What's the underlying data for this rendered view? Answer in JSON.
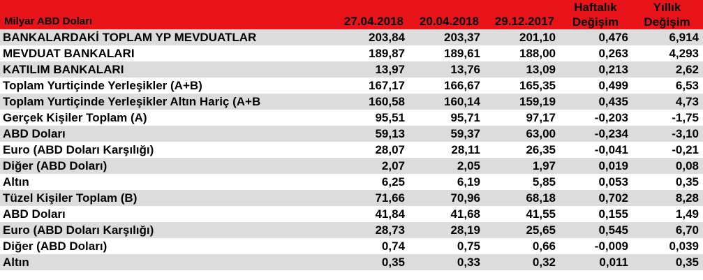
{
  "header": {
    "unit_label": "Milyar ABD Doları",
    "col1": "27.04.2018",
    "col2": "20.04.2018",
    "col3": "29.12.2017",
    "col4_line1": "Haftalık",
    "col4_line2": "Değişim",
    "col5_line1": "Yıllık",
    "col5_line2": "Değişim"
  },
  "rows": [
    {
      "label": "BANKALARDAKİ TOPLAM YP MEVDUATLAR",
      "level": 0,
      "v1": "203,84",
      "v2": "203,37",
      "v3": "201,10",
      "v4": "0,476",
      "v5": "6,914"
    },
    {
      "label": "MEVDUAT BANKALARI",
      "level": 0,
      "v1": "189,87",
      "v2": "189,61",
      "v3": "188,00",
      "v4": "0,263",
      "v5": "4,293"
    },
    {
      "label": "KATILIM BANKALARI",
      "level": 0,
      "v1": "13,97",
      "v2": "13,76",
      "v3": "13,09",
      "v4": "0,213",
      "v5": "2,62"
    },
    {
      "label": "Toplam Yurtiçinde Yerleşikler (A+B)",
      "level": 0,
      "v1": "167,17",
      "v2": "166,67",
      "v3": "165,35",
      "v4": "0,499",
      "v5": "6,53"
    },
    {
      "label": "Toplam Yurtiçinde Yerleşikler Altın Hariç (A+B",
      "level": 0,
      "v1": "160,58",
      "v2": "160,14",
      "v3": "159,19",
      "v4": "0,435",
      "v5": "4,73"
    },
    {
      "label": "Gerçek Kişiler Toplam (A)",
      "level": 1,
      "v1": "95,51",
      "v2": "95,71",
      "v3": "97,17",
      "v4": "-0,203",
      "v5": "-1,75"
    },
    {
      "label": "ABD Doları",
      "level": 2,
      "v1": "59,13",
      "v2": "59,37",
      "v3": "63,00",
      "v4": "-0,234",
      "v5": "-3,10"
    },
    {
      "label": "Euro (ABD Doları Karşılığı)",
      "level": 2,
      "v1": "28,07",
      "v2": "28,11",
      "v3": "26,35",
      "v4": "-0,041",
      "v5": "-0,21"
    },
    {
      "label": "Diğer (ABD Doları)",
      "level": 2,
      "v1": "2,07",
      "v2": "2,05",
      "v3": "1,97",
      "v4": "0,019",
      "v5": "0,08"
    },
    {
      "label": "Altın",
      "level": 3,
      "v1": "6,25",
      "v2": "6,19",
      "v3": "5,85",
      "v4": "0,053",
      "v5": "0,35"
    },
    {
      "label": "Tüzel Kişiler Toplam (B)",
      "level": 1,
      "v1": "71,66",
      "v2": "70,96",
      "v3": "68,18",
      "v4": "0,702",
      "v5": "8,28"
    },
    {
      "label": "ABD Doları",
      "level": 2,
      "v1": "41,84",
      "v2": "41,68",
      "v3": "41,55",
      "v4": "0,155",
      "v5": "1,49"
    },
    {
      "label": "Euro (ABD Doları Karşılığı)",
      "level": 2,
      "v1": "28,73",
      "v2": "28,19",
      "v3": "25,65",
      "v4": "0,545",
      "v5": "6,70"
    },
    {
      "label": "Diğer (ABD Doları)",
      "level": 2,
      "v1": "0,74",
      "v2": "0,75",
      "v3": "0,66",
      "v4": "-0,009",
      "v5": "0,039"
    },
    {
      "label": "Altın",
      "level": 2,
      "v1": "0,35",
      "v2": "0,33",
      "v3": "0,32",
      "v4": "0,011",
      "v5": "0,35"
    }
  ],
  "colors": {
    "header_bg": "#e8141a",
    "header_text": "#ffffff",
    "row_shade": "#dcdcdc"
  }
}
